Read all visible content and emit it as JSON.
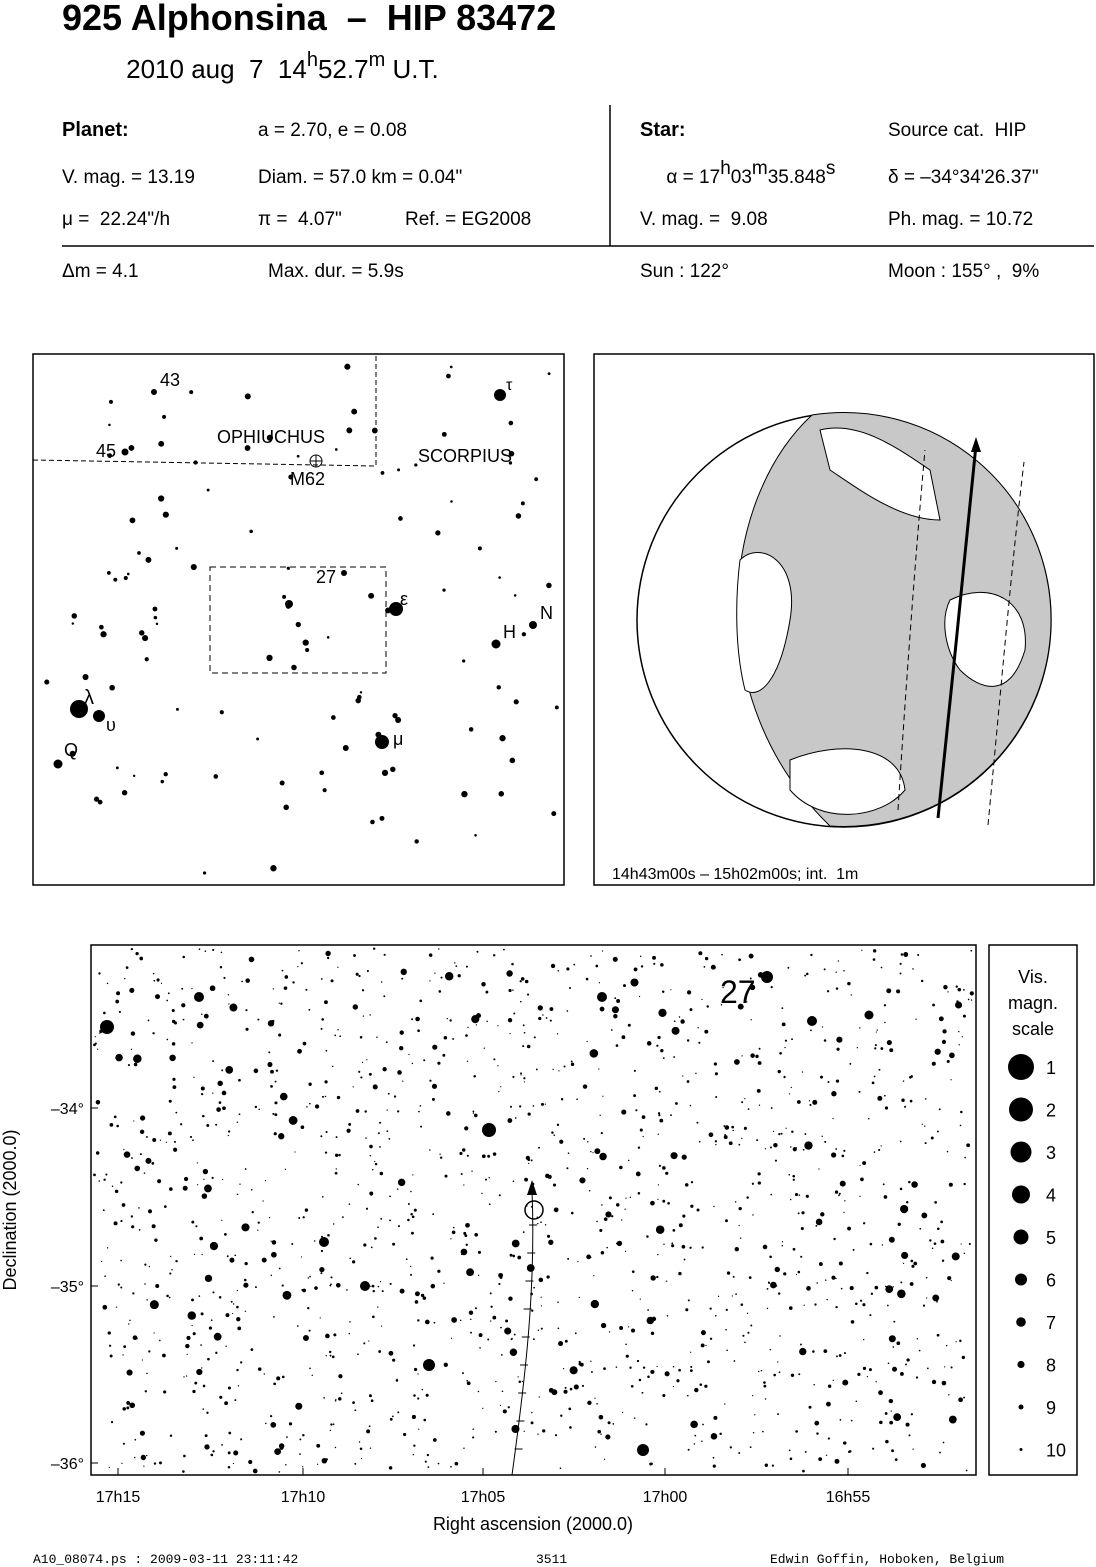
{
  "header": {
    "title": "925 Alphonsina  –  HIP 83472",
    "date": [
      "2010 aug  7  14",
      "h",
      "52.7",
      "m",
      " U.T."
    ]
  },
  "planet": {
    "heading": "Planet:",
    "orbit": "a = 2.70, e = 0.08",
    "vmag": "V. mag. = 13.19",
    "diam": "Diam. = 57.0 km = 0.04\"",
    "mu": "μ =  22.24\"/h",
    "pi": "π =  4.07\"",
    "ref": "Ref. = EG2008"
  },
  "star": {
    "heading": "Star:",
    "source": "Source cat.  HIP",
    "alpha": [
      "α = 17",
      "h",
      "03",
      "m",
      "35.848",
      "s"
    ],
    "delta": "δ = –34°34'26.37\"",
    "vmag": "V. mag. =  9.08",
    "phmag": "Ph. mag. = 10.72"
  },
  "event": {
    "dm": "Δm = 4.1",
    "maxdur": "Max. dur. = 5.9s",
    "sun": "Sun : 122°",
    "moon": "Moon : 155° ,  9%"
  },
  "finder": {
    "labels": [
      "43",
      "45",
      "OPHIUCHUS",
      "SCORPIUS",
      "M62",
      "27",
      "ε",
      "N",
      "H",
      "τ",
      "λ",
      "υ",
      "Q",
      "μ"
    ]
  },
  "globe": {
    "caption": "14h43m00s – 15h02m00s; int.  1m"
  },
  "main_chart": {
    "y_label": "Declination (2000.0)",
    "x_label": "Right ascension (2000.0)",
    "yticks": [
      "–34°",
      "–35°",
      "–36°"
    ],
    "xticks": [
      "17h15",
      "17h10",
      "17h05",
      "17h00",
      "16h55"
    ],
    "star_label": "27"
  },
  "scale": {
    "title": [
      "Vis.",
      "magn.",
      "scale"
    ],
    "levels": [
      "1",
      "2",
      "3",
      "4",
      "5",
      "6",
      "7",
      "8",
      "9",
      "10"
    ]
  },
  "footer": {
    "file": "A10_08074.ps : 2009-03-11 23:11:42",
    "page": "3511",
    "author": "Edwin Goffin, Hoboken, Belgium"
  }
}
